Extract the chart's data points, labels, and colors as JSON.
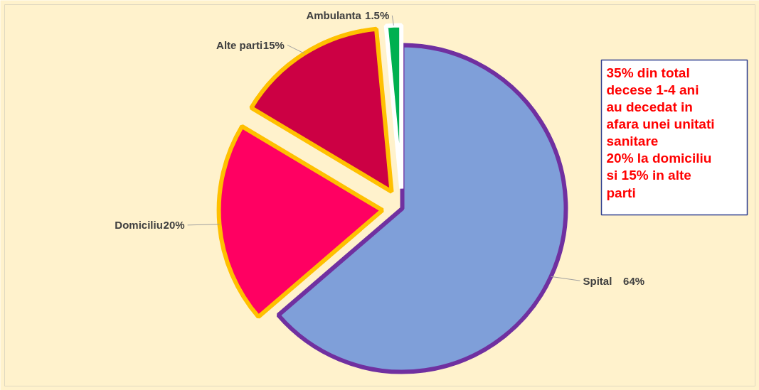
{
  "chart_data": {
    "type": "pie",
    "categories": [
      "Spital",
      "Domiciliu",
      "Alte parti",
      "Ambulanta"
    ],
    "values": [
      64,
      20,
      15,
      1.5
    ],
    "colors": [
      "#7f9fd9",
      "#ff0062",
      "#cc0044",
      "#00b050"
    ],
    "value_labels": [
      "64%",
      "20%",
      "15%",
      "1.5%"
    ],
    "legend": false,
    "annotations": [
      "35% din total\ndecese 1-4 ani\nau decedat in\nafara unei unitati\nsanitare\n20% la domiciliu\nsi 15% in alte\nparti"
    ]
  }
}
